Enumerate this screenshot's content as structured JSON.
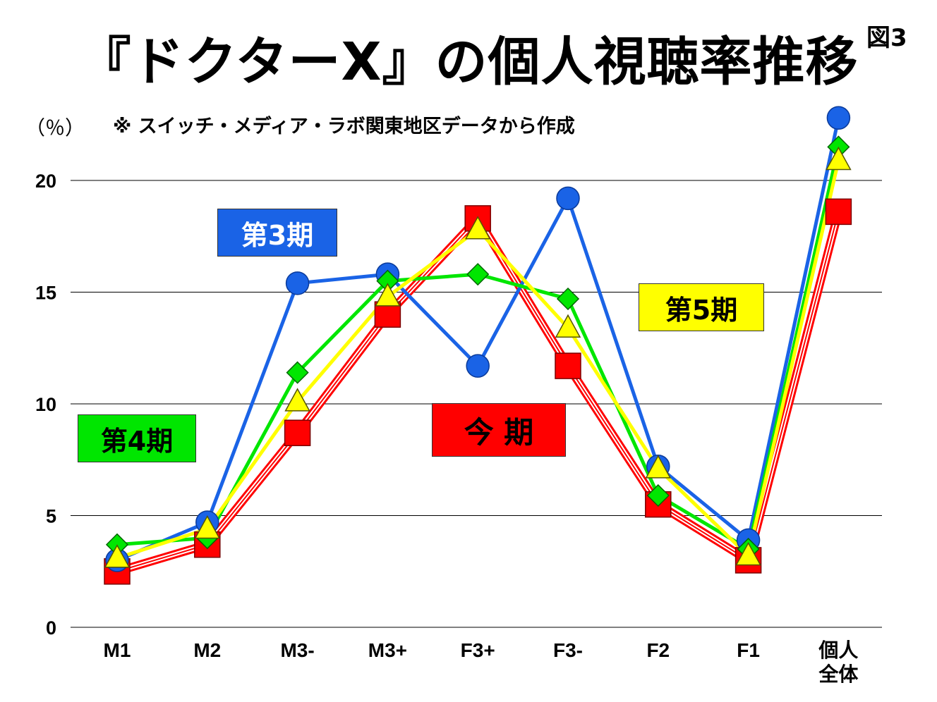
{
  "title": "『ドクターX』の個人視聴率推移",
  "figure_label": "図3",
  "unit": "（％）",
  "note": "※ スイッチ・メディア・ラボ関東地区データから作成",
  "colors": {
    "gridline": "#000000"
  },
  "chart_data": {
    "type": "line",
    "categories": [
      "M1",
      "M2",
      "M3-",
      "M3+",
      "F3+",
      "F3-",
      "F2",
      "F1",
      "個人全体"
    ],
    "category_labels": [
      [
        "M1"
      ],
      [
        "M2"
      ],
      [
        "M3-"
      ],
      [
        "M3+"
      ],
      [
        "F3+"
      ],
      [
        "F3-"
      ],
      [
        "F2"
      ],
      [
        "F1"
      ],
      [
        "個人",
        "全体"
      ]
    ],
    "ylim": [
      0,
      20
    ],
    "yticks": [
      0,
      5,
      10,
      15,
      20
    ],
    "grid": true,
    "series": [
      {
        "name": "第3期",
        "color": "#1a63e6",
        "marker": "circle",
        "label_text_color": "#ffffff",
        "values": [
          3.0,
          4.7,
          15.4,
          15.8,
          11.7,
          19.2,
          7.2,
          3.9,
          22.8
        ]
      },
      {
        "name": "今 期",
        "color": "#ff0000",
        "marker": "square",
        "label_text_color": "#000000",
        "values": [
          2.5,
          3.7,
          8.7,
          14.0,
          18.3,
          11.7,
          5.5,
          3.0,
          18.6
        ]
      },
      {
        "name": "第4期",
        "color": "#00e600",
        "marker": "diamond",
        "label_text_color": "#000000",
        "values": [
          3.7,
          4.0,
          11.4,
          15.5,
          15.8,
          14.7,
          5.9,
          3.5,
          21.5
        ]
      },
      {
        "name": "第5期",
        "color": "#ffff00",
        "marker": "triangle",
        "label_text_color": "#000000",
        "values": [
          3.1,
          4.4,
          10.1,
          14.8,
          17.8,
          13.4,
          7.1,
          3.2,
          20.9
        ]
      }
    ]
  }
}
